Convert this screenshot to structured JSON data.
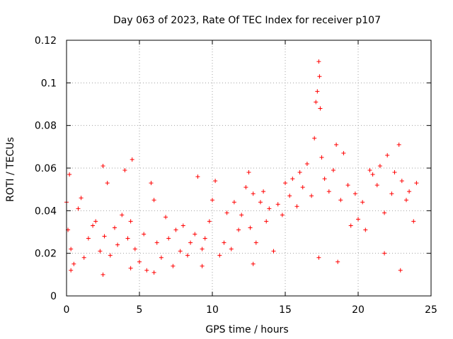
{
  "chart_data": {
    "type": "scatter",
    "title": "Day 063 of 2023, Rate Of TEC Index for receiver p107",
    "xlabel": "GPS time / hours",
    "ylabel": "ROTI / TECUs",
    "xlim": [
      0,
      25
    ],
    "ylim": [
      0,
      0.12
    ],
    "x_ticks": [
      "0",
      "5",
      "10",
      "15",
      "20",
      "25"
    ],
    "y_ticks": [
      "0",
      "0.02",
      "0.04",
      "0.06",
      "0.08",
      "0.1",
      "0.12"
    ],
    "grid": true,
    "marker": "+",
    "color": "#ff0000",
    "series": [
      {
        "x": [
          0.0,
          0.1,
          0.2,
          0.3,
          0.5,
          0.8,
          1.0,
          1.2,
          1.5,
          1.8,
          2.0,
          2.3,
          2.5,
          2.6,
          2.8,
          3.0,
          3.3,
          3.5,
          3.8,
          4.0,
          4.2,
          4.4,
          4.5,
          4.7,
          5.0,
          5.3,
          5.5,
          5.8,
          6.0,
          6.2,
          6.5,
          6.8,
          7.0,
          7.3,
          7.5,
          7.8,
          8.0,
          8.3,
          8.5,
          8.8,
          9.0,
          9.3,
          9.5,
          9.8,
          10.0,
          10.2,
          10.5,
          10.8,
          11.0,
          11.3,
          11.5,
          11.8,
          12.0,
          12.3,
          12.5,
          12.6,
          12.8,
          13.0,
          13.3,
          13.5,
          13.7,
          13.9,
          14.2,
          14.5,
          14.8,
          15.0,
          15.3,
          15.5,
          15.8,
          16.0,
          16.2,
          16.5,
          16.8,
          17.0,
          17.1,
          17.2,
          17.3,
          17.35,
          17.4,
          17.5,
          17.7,
          18.0,
          18.3,
          18.5,
          18.8,
          19.0,
          19.3,
          19.5,
          19.8,
          20.0,
          20.3,
          20.5,
          20.8,
          21.0,
          21.3,
          21.5,
          21.8,
          22.0,
          22.3,
          22.5,
          22.8,
          23.0,
          23.3,
          23.5,
          23.8,
          24.0,
          0.3,
          2.5,
          4.4,
          6.0,
          9.3,
          12.8,
          17.3,
          18.6,
          21.8,
          22.9
        ],
        "y": [
          0.044,
          0.031,
          0.057,
          0.022,
          0.015,
          0.041,
          0.046,
          0.018,
          0.027,
          0.033,
          0.035,
          0.021,
          0.061,
          0.028,
          0.053,
          0.019,
          0.032,
          0.024,
          0.038,
          0.059,
          0.027,
          0.035,
          0.064,
          0.022,
          0.016,
          0.029,
          0.012,
          0.053,
          0.045,
          0.025,
          0.018,
          0.037,
          0.027,
          0.014,
          0.031,
          0.021,
          0.033,
          0.019,
          0.025,
          0.029,
          0.056,
          0.022,
          0.027,
          0.035,
          0.045,
          0.054,
          0.019,
          0.025,
          0.039,
          0.022,
          0.044,
          0.031,
          0.038,
          0.051,
          0.058,
          0.032,
          0.048,
          0.025,
          0.044,
          0.049,
          0.035,
          0.041,
          0.021,
          0.043,
          0.038,
          0.053,
          0.047,
          0.055,
          0.042,
          0.058,
          0.051,
          0.062,
          0.047,
          0.074,
          0.091,
          0.096,
          0.11,
          0.103,
          0.088,
          0.065,
          0.055,
          0.049,
          0.059,
          0.071,
          0.045,
          0.067,
          0.052,
          0.033,
          0.048,
          0.036,
          0.044,
          0.031,
          0.059,
          0.057,
          0.052,
          0.061,
          0.039,
          0.066,
          0.048,
          0.058,
          0.071,
          0.054,
          0.045,
          0.049,
          0.035,
          0.053,
          0.012,
          0.01,
          0.013,
          0.011,
          0.014,
          0.015,
          0.018,
          0.016,
          0.02,
          0.012
        ]
      }
    ]
  }
}
